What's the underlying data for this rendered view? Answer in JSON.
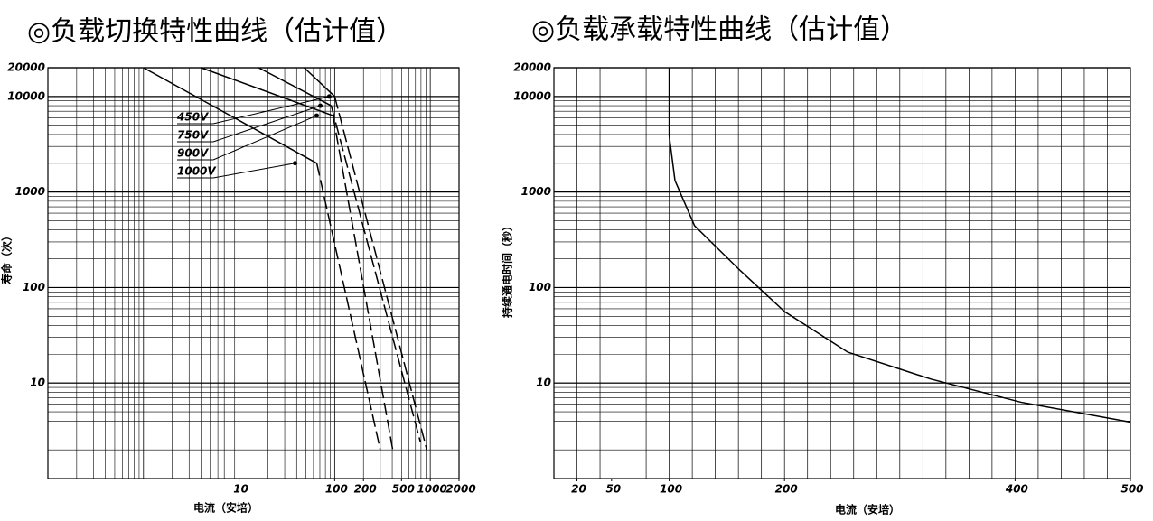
{
  "chart_data": [
    {
      "type": "line",
      "title": "◎负载切换特性曲线（估计值）",
      "x_label": "电流（安培）",
      "y_label": "寿命（次）",
      "xscale": "log",
      "yscale": "log",
      "xlim": [
        0.1,
        2000
      ],
      "ylim": [
        1,
        20000
      ],
      "xticks": [
        10,
        100,
        200,
        500,
        1000,
        2000
      ],
      "yticks": [
        20000,
        10000,
        1000,
        100,
        10
      ],
      "grid": true,
      "minor_grid": [
        2,
        3,
        4,
        5,
        6,
        7,
        8,
        9
      ],
      "color": "#000000",
      "series": [
        {
          "name": "450V",
          "x": [
            48,
            100,
            920
          ],
          "values": [
            20000,
            10000,
            2
          ]
        },
        {
          "name": "750V",
          "x": [
            16,
            92,
            790
          ],
          "values": [
            20000,
            8000,
            2.4
          ]
        },
        {
          "name": "900V",
          "x": [
            4,
            96,
            405
          ],
          "values": [
            20000,
            6300,
            2
          ]
        },
        {
          "name": "1000V",
          "x": [
            1,
            65,
            300
          ],
          "values": [
            20000,
            2000,
            2
          ]
        }
      ]
    },
    {
      "type": "line",
      "title": "◎负载承载特性曲线（估计值）",
      "x_label": "电流（安培）",
      "y_label": "持续通电时间（秒）",
      "xscale": "linear",
      "yscale": "log",
      "xlim": [
        0,
        500
      ],
      "ylim": [
        1,
        20000
      ],
      "xticks": [
        20,
        50,
        100,
        200,
        400,
        500
      ],
      "yticks": [
        20000,
        10000,
        1000,
        100,
        10
      ],
      "grid": true,
      "minor_grid": [
        2,
        3,
        4,
        5,
        6,
        7,
        8,
        9
      ],
      "xgrid": [
        20,
        40,
        60,
        80,
        100,
        120,
        140,
        160,
        180,
        200,
        220,
        240,
        260,
        280,
        300,
        320,
        340,
        360,
        380,
        400,
        420,
        440,
        460,
        480,
        500
      ],
      "color": "#000000",
      "series": [
        {
          "x": [
            100,
            100,
            105,
            122,
            162,
            200,
            255,
            327,
            405,
            500
          ],
          "values": [
            20000,
            3900,
            1320,
            443,
            149,
            56,
            21,
            11,
            6.3,
            3.9
          ]
        }
      ]
    }
  ]
}
